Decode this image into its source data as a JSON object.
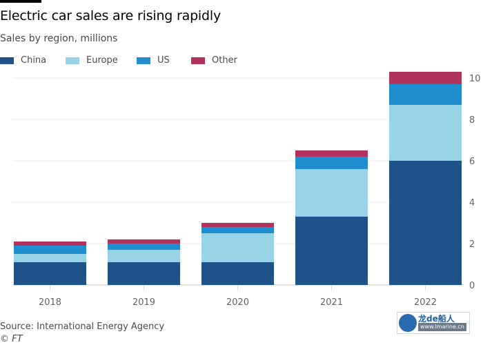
{
  "header": {
    "title": "Electric car sales are rising rapidly",
    "subtitle": "Sales by region, millions"
  },
  "legend": [
    {
      "label": "China",
      "color": "#1f5289"
    },
    {
      "label": "Europe",
      "color": "#96d3e6"
    },
    {
      "label": "US",
      "color": "#1e8ecf"
    },
    {
      "label": "Other",
      "color": "#b1325c"
    }
  ],
  "footer": {
    "source": "Source: International Energy Agency",
    "copyright": "© FT"
  },
  "watermark": {
    "main": "龙de船人",
    "url": "www.lmarine.cn"
  },
  "chart_data": {
    "type": "bar",
    "stacked": true,
    "title": "Electric car sales are rising rapidly",
    "subtitle": "Sales by region, millions",
    "xlabel": "",
    "ylabel": "",
    "categories": [
      "2018",
      "2019",
      "2020",
      "2021",
      "2022"
    ],
    "series": [
      {
        "name": "China",
        "color": "#1f5289",
        "values": [
          1.1,
          1.1,
          1.1,
          3.3,
          6.0
        ]
      },
      {
        "name": "Europe",
        "color": "#96d3e6",
        "values": [
          0.4,
          0.6,
          1.4,
          2.3,
          2.7
        ]
      },
      {
        "name": "US",
        "color": "#1e8ecf",
        "values": [
          0.4,
          0.3,
          0.3,
          0.6,
          1.0
        ]
      },
      {
        "name": "Other",
        "color": "#b1325c",
        "values": [
          0.2,
          0.2,
          0.2,
          0.3,
          0.6
        ]
      }
    ],
    "ylim": [
      0,
      10
    ],
    "yticks": [
      0,
      2,
      4,
      6,
      8,
      10
    ],
    "y_axis_side": "right",
    "grid": true,
    "legend_position": "top-left"
  }
}
